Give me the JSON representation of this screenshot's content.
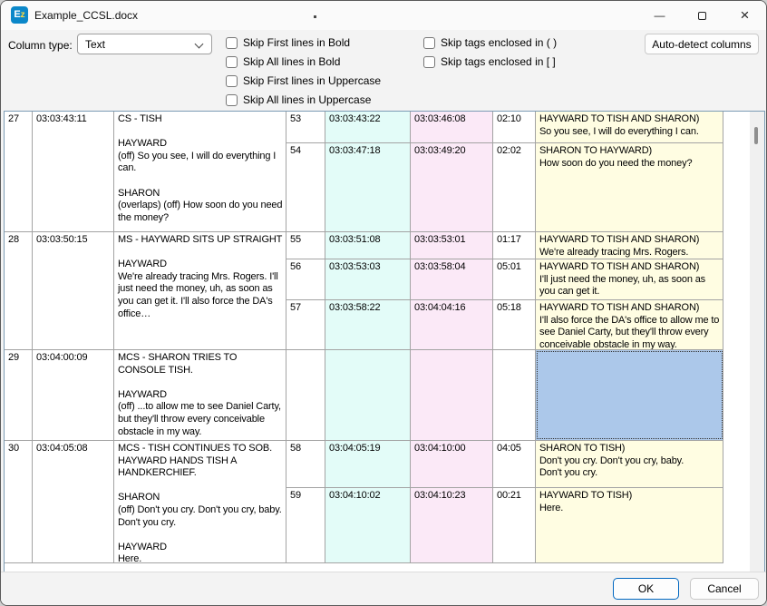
{
  "window": {
    "title": "Example_CCSL.docx",
    "icon_text_e": "E",
    "icon_text_z": "z",
    "controls": {
      "minimize": "—",
      "close": "×"
    }
  },
  "toolbar": {
    "column_type_label": "Column type:",
    "column_type_value": "Text",
    "checkboxes_left": [
      "Skip First lines in Bold",
      "Skip All lines in Bold",
      "Skip First lines in Uppercase",
      "Skip All lines in Uppercase"
    ],
    "checkboxes_right": [
      "Skip tags enclosed in ( )",
      "Skip tags enclosed in [ ]"
    ],
    "autodetect_button": "Auto-detect columns"
  },
  "table": {
    "left_rows": [
      {
        "num": "27",
        "time": "03:03:43:11",
        "text": "CS - TISH\n\nHAYWARD\n(off) So you see, I will do everything I can.\n\nSHARON\n(overlaps) (off) How soon do you need the money?"
      },
      {
        "num": "28",
        "time": "03:03:50:15",
        "text": "MS - HAYWARD SITS UP STRAIGHT\n\nHAYWARD\nWe're already tracing Mrs. Rogers. I'll just need the money, uh, as soon as you can get it. I'll also force the DA's office…"
      },
      {
        "num": "29",
        "time": "03:04:00:09",
        "text": "MCS - SHARON TRIES TO CONSOLE TISH.\n\nHAYWARD\n(off) ...to allow me to see Daniel Carty, but they'll throw every conceivable obstacle in my way."
      },
      {
        "num": "30",
        "time": "03:04:05:08",
        "text": "MCS - TISH CONTINUES TO SOB. HAYWARD HANDS TISH A HANDKERCHIEF.\n\nSHARON\n(off) Don't you cry. Don't you cry, baby. Don't you cry.\n\nHAYWARD\nHere."
      }
    ],
    "right_rows": [
      {
        "num": "53",
        "tc_in": "03:03:43:22",
        "tc_out": "03:03:46:08",
        "dur": "02:10",
        "text": "HAYWARD TO TISH AND SHARON)\nSo you see, I will do everything I can.",
        "selected": false
      },
      {
        "num": "54",
        "tc_in": "03:03:47:18",
        "tc_out": "03:03:49:20",
        "dur": "02:02",
        "text": "SHARON TO HAYWARD)\nHow soon do you need the money?",
        "selected": false
      },
      {
        "num": "55",
        "tc_in": "03:03:51:08",
        "tc_out": "03:03:53:01",
        "dur": "01:17",
        "text": "HAYWARD TO TISH AND SHARON)\nWe're already tracing Mrs. Rogers.",
        "selected": false
      },
      {
        "num": "56",
        "tc_in": "03:03:53:03",
        "tc_out": "03:03:58:04",
        "dur": "05:01",
        "text": "HAYWARD TO TISH AND SHARON)\nI'll just need the money, uh, as soon as you can get it.",
        "selected": false
      },
      {
        "num": "57",
        "tc_in": "03:03:58:22",
        "tc_out": "03:04:04:16",
        "dur": "05:18",
        "text": "HAYWARD TO TISH AND SHARON)\nI'll also force the DA's office to allow me to see Daniel Carty, but they'll throw every conceivable obstacle in my way.",
        "selected": false
      },
      {
        "num": "",
        "tc_in": "",
        "tc_out": "",
        "dur": "",
        "text": "",
        "selected": true
      },
      {
        "num": "58",
        "tc_in": "03:04:05:19",
        "tc_out": "03:04:10:00",
        "dur": "04:05",
        "text": "SHARON TO TISH)\nDon't you cry. Don't you cry, baby.\nDon't you cry.",
        "selected": false
      },
      {
        "num": "59",
        "tc_in": "03:04:10:02",
        "tc_out": "03:04:10:23",
        "dur": "00:21",
        "text": "HAYWARD TO TISH)\nHere.",
        "selected": false
      }
    ]
  },
  "footer": {
    "ok_label": "OK",
    "cancel_label": "Cancel"
  },
  "colors": {
    "col-in": "#e3fcf8",
    "col-out": "#fbe9f7",
    "col-text": "#fffde2",
    "col-selection": "#acc8ea",
    "accent": "#0067c0"
  }
}
